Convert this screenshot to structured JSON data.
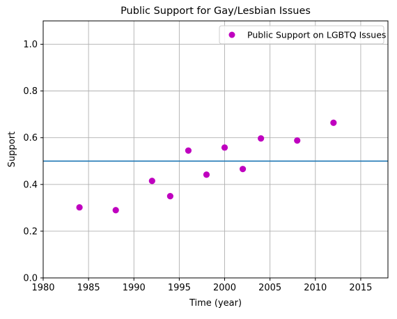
{
  "chart_data": {
    "type": "scatter",
    "title": "Public Support for Gay/Lesbian Issues",
    "xlabel": "Time (year)",
    "ylabel": "Support",
    "xlim": [
      1980,
      2018
    ],
    "ylim": [
      0.0,
      1.1
    ],
    "x_ticks": [
      1980,
      1985,
      1990,
      1995,
      2000,
      2005,
      2010,
      2015
    ],
    "x_tick_labels": [
      "1980",
      "1985",
      "1990",
      "1995",
      "2000",
      "2005",
      "2010",
      "2015"
    ],
    "y_ticks": [
      0.0,
      0.2,
      0.4,
      0.6,
      0.8,
      1.0
    ],
    "y_tick_labels": [
      "0.0",
      "0.2",
      "0.4",
      "0.6",
      "0.8",
      "1.0"
    ],
    "grid": true,
    "legend_position": "top-right",
    "series": [
      {
        "name": "Public Support on LGBTQ Issues",
        "color": "#bf00bf",
        "marker": "circle",
        "x": [
          1984,
          1988,
          1992,
          1994,
          1996,
          1998,
          2000,
          2002,
          2004,
          2008,
          2012
        ],
        "y": [
          0.302,
          0.29,
          0.415,
          0.35,
          0.545,
          0.442,
          0.558,
          0.466,
          0.597,
          0.588,
          0.664
        ]
      }
    ],
    "reference_lines": [
      {
        "orientation": "horizontal",
        "y": 0.5,
        "color": "#1f77b4"
      }
    ]
  }
}
